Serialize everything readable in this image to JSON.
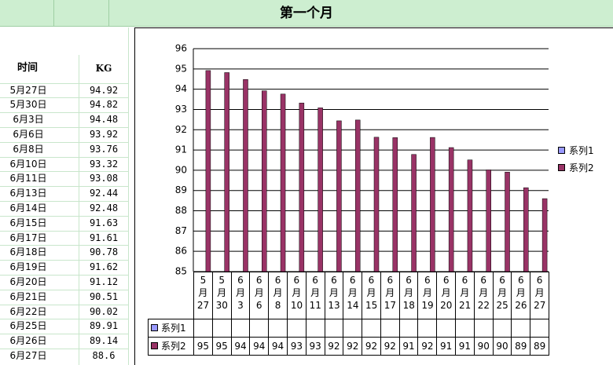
{
  "header": {
    "title": "第一个月"
  },
  "table": {
    "columns": [
      "时间",
      "KG"
    ],
    "rows": [
      [
        "5月27日",
        "94.92"
      ],
      [
        "5月30日",
        "94.82"
      ],
      [
        "6月3日",
        "94.48"
      ],
      [
        "6月6日",
        "93.92"
      ],
      [
        "6月8日",
        "93.76"
      ],
      [
        "6月10日",
        "93.32"
      ],
      [
        "6月11日",
        "93.08"
      ],
      [
        "6月13日",
        "92.44"
      ],
      [
        "6月14日",
        "92.48"
      ],
      [
        "6月15日",
        "91.63"
      ],
      [
        "6月17日",
        "91.61"
      ],
      [
        "6月18日",
        "90.78"
      ],
      [
        "6月19日",
        "91.62"
      ],
      [
        "6月20日",
        "91.12"
      ],
      [
        "6月21日",
        "90.51"
      ],
      [
        "6月22日",
        "90.02"
      ],
      [
        "6月25日",
        "89.91"
      ],
      [
        "6月26日",
        "89.14"
      ],
      [
        "6月27日",
        "88.6"
      ]
    ]
  },
  "chart_data": {
    "type": "bar",
    "categories": [
      "5月27",
      "5月30",
      "6月3",
      "6月6",
      "6月8",
      "6月10",
      "6月11",
      "6月13",
      "6月14",
      "6月15",
      "6月17",
      "6月18",
      "6月19",
      "6月20",
      "6月21",
      "6月22",
      "6月25",
      "6月26",
      "6月27"
    ],
    "series": [
      {
        "name": "系列1",
        "color": "#9999ff",
        "values": [
          null,
          null,
          null,
          null,
          null,
          null,
          null,
          null,
          null,
          null,
          null,
          null,
          null,
          null,
          null,
          null,
          null,
          null,
          null
        ]
      },
      {
        "name": "系列2",
        "color": "#993366",
        "values": [
          94.92,
          94.82,
          94.48,
          93.92,
          93.76,
          93.32,
          93.08,
          92.44,
          92.48,
          91.63,
          91.61,
          90.78,
          91.62,
          91.12,
          90.51,
          90.02,
          89.91,
          89.14,
          88.6
        ],
        "value_labels": [
          "95",
          "95",
          "94",
          "94",
          "94",
          "93",
          "93",
          "92",
          "92",
          "92",
          "92",
          "91",
          "92",
          "91",
          "91",
          "90",
          "90",
          "89",
          "89"
        ]
      }
    ],
    "ylim": [
      85,
      96
    ],
    "yticks": [
      85,
      86,
      87,
      88,
      89,
      90,
      91,
      92,
      93,
      94,
      95,
      96
    ],
    "grid": true,
    "legend": "right",
    "data_table": true
  }
}
